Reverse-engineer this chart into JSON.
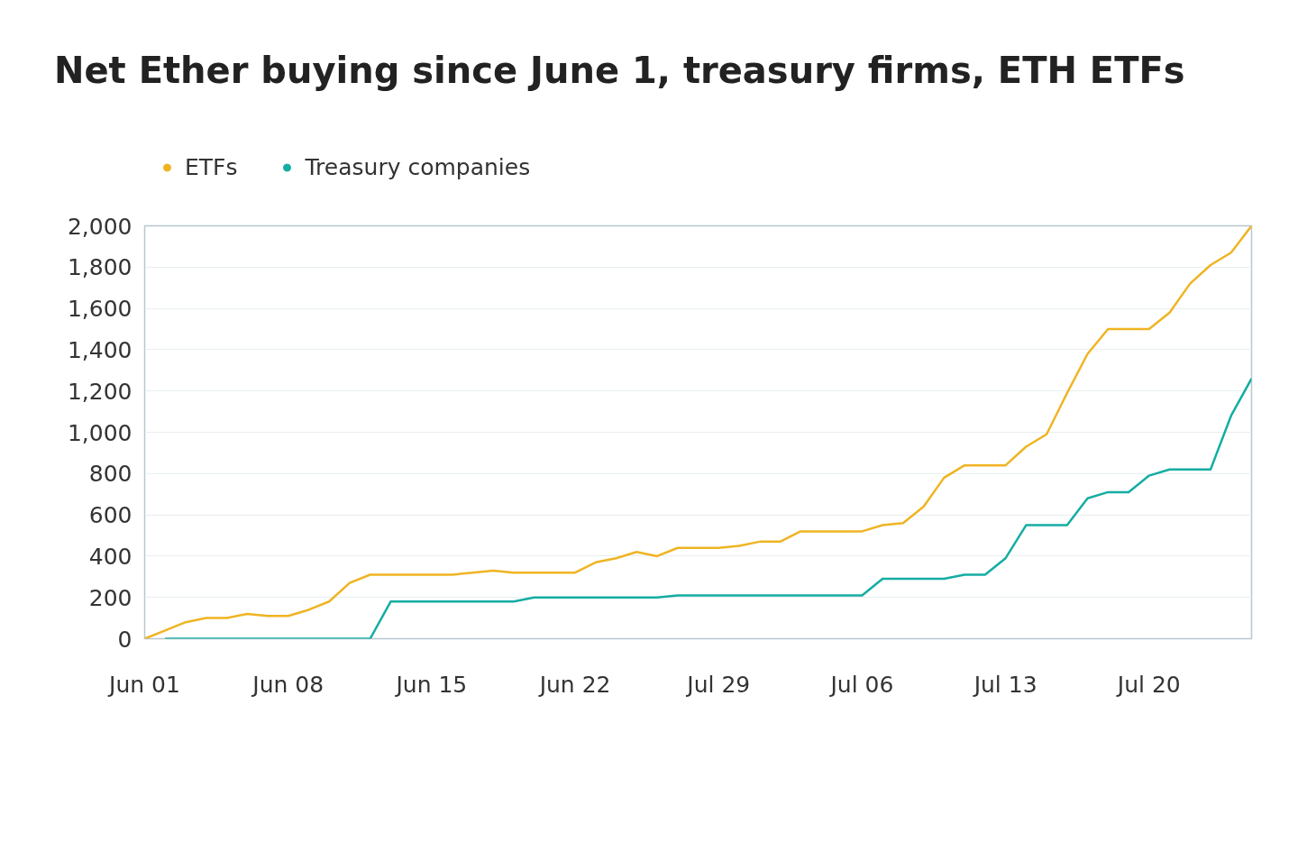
{
  "chart_data": {
    "type": "line",
    "title": "Net Ether buying since June 1, treasury firms, ETH ETFs",
    "categories": [
      "Jun 01",
      null,
      null,
      null,
      null,
      null,
      null,
      "Jun 08",
      null,
      null,
      null,
      null,
      null,
      null,
      "Jun 15",
      null,
      null,
      null,
      null,
      null,
      null,
      "Jun 22",
      null,
      null,
      null,
      null,
      null,
      null,
      "Jul 29",
      null,
      null,
      null,
      null,
      null,
      null,
      "Jul 06",
      null,
      null,
      null,
      null,
      null,
      null,
      "Jul 13",
      null,
      null,
      null,
      null,
      null,
      null,
      "Jul 20",
      null,
      null,
      null,
      null,
      null
    ],
    "series": [
      {
        "name": "ETFs",
        "color": "#efb422",
        "values": [
          0,
          40,
          80,
          100,
          100,
          120,
          110,
          110,
          140,
          180,
          270,
          310,
          310,
          310,
          310,
          310,
          320,
          330,
          320,
          320,
          320,
          320,
          370,
          390,
          420,
          400,
          440,
          440,
          440,
          450,
          470,
          470,
          520,
          520,
          520,
          520,
          550,
          560,
          640,
          780,
          840,
          840,
          840,
          930,
          990,
          1190,
          1380,
          1500,
          1500,
          1500,
          1580,
          1720,
          1810,
          1870,
          2000
        ]
      },
      {
        "name": "Treasury companies",
        "color": "#14ada3",
        "values": [
          null,
          0,
          0,
          0,
          0,
          0,
          0,
          0,
          0,
          0,
          0,
          0,
          180,
          180,
          180,
          180,
          180,
          180,
          180,
          200,
          200,
          200,
          200,
          200,
          200,
          200,
          210,
          210,
          210,
          210,
          210,
          210,
          210,
          210,
          210,
          210,
          290,
          290,
          290,
          290,
          310,
          310,
          390,
          550,
          550,
          550,
          680,
          710,
          710,
          790,
          820,
          820,
          820,
          1080,
          1260
        ]
      }
    ],
    "ylim": [
      0,
      2000
    ],
    "yticks": [
      {
        "value": 0,
        "label": "0"
      },
      {
        "value": 200,
        "label": "200"
      },
      {
        "value": 400,
        "label": "400"
      },
      {
        "value": 600,
        "label": "600"
      },
      {
        "value": 800,
        "label": "800"
      },
      {
        "value": 1000,
        "label": "1,000"
      },
      {
        "value": 1200,
        "label": "1,200"
      },
      {
        "value": 1400,
        "label": "1,400"
      },
      {
        "value": 1600,
        "label": "1,600"
      },
      {
        "value": 1800,
        "label": "1,800"
      },
      {
        "value": 2000,
        "label": "2,000"
      }
    ],
    "grid": "y",
    "legend": "top left",
    "marker": "none",
    "line_style": "solid"
  }
}
